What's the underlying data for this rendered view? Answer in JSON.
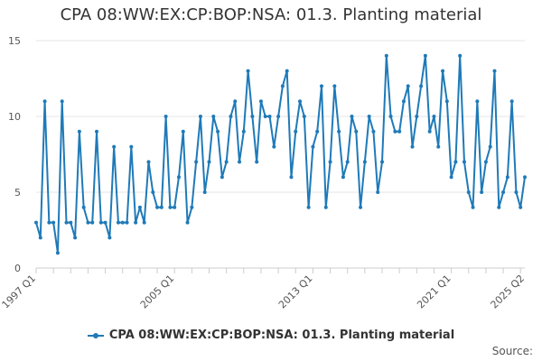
{
  "chart_data": {
    "type": "line",
    "title": "CPA 08:WW:EX:CP:BOP:NSA: 01.3. Planting material",
    "xlabel": "",
    "ylabel": "",
    "ylim": [
      0,
      15
    ],
    "yticks": [
      0,
      5,
      10,
      15
    ],
    "x_start": "1997 Q1",
    "x_end": "2025 Q2",
    "x_tick_labels": [
      "1997 Q1",
      "2005 Q1",
      "2013 Q1",
      "2021 Q1",
      "2025 Q2"
    ],
    "grid": true,
    "legend_position": "bottom",
    "series": [
      {
        "name": "CPA 08:WW:EX:CP:BOP:NSA: 01.3. Planting material",
        "color": "#1f7ab8",
        "values": [
          3,
          2,
          11,
          3,
          3,
          1,
          11,
          3,
          3,
          2,
          9,
          4,
          3,
          3,
          9,
          3,
          3,
          2,
          8,
          3,
          3,
          3,
          8,
          3,
          4,
          3,
          7,
          5,
          4,
          4,
          10,
          4,
          4,
          6,
          9,
          3,
          4,
          7,
          10,
          5,
          7,
          10,
          9,
          6,
          7,
          10,
          11,
          7,
          9,
          13,
          10,
          7,
          11,
          10,
          10,
          8,
          10,
          12,
          13,
          6,
          9,
          11,
          10,
          4,
          8,
          9,
          12,
          4,
          7,
          12,
          9,
          6,
          7,
          10,
          9,
          4,
          7,
          10,
          9,
          5,
          7,
          14,
          10,
          9,
          9,
          11,
          12,
          8,
          10,
          12,
          14,
          9,
          10,
          8,
          13,
          11,
          6,
          7,
          14,
          7,
          5,
          4,
          11,
          5,
          7,
          8,
          13,
          4,
          5,
          6,
          11,
          5,
          4,
          6
        ]
      }
    ]
  },
  "legend": {
    "label": "CPA 08:WW:EX:CP:BOP:NSA: 01.3. Planting material"
  },
  "footer": {
    "source_label": "Source:"
  }
}
